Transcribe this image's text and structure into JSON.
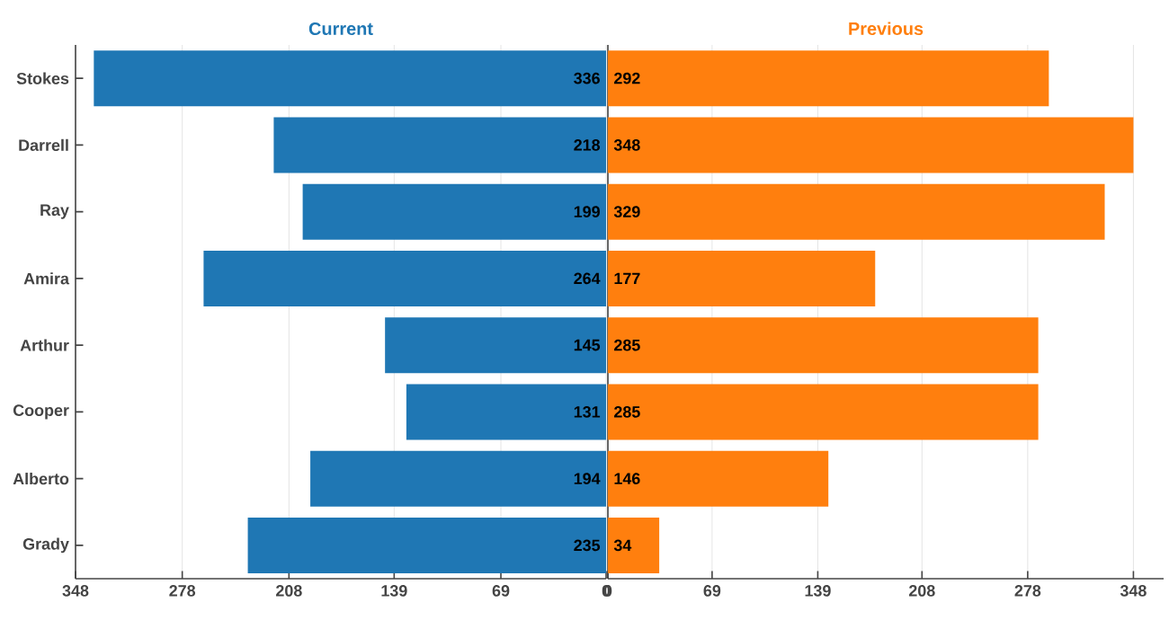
{
  "chart_data": [
    {
      "type": "bar",
      "orientation": "horizontal",
      "title": "Current",
      "categories": [
        "Stokes",
        "Darrell",
        "Ray",
        "Amira",
        "Arthur",
        "Cooper",
        "Alberto",
        "Grady"
      ],
      "values": [
        336,
        218,
        199,
        264,
        145,
        131,
        194,
        235
      ],
      "color": "#1f77b4",
      "xlim": [
        348,
        0
      ],
      "xticks": [
        348,
        278,
        208,
        139,
        69,
        0
      ],
      "grid": "x",
      "data_labels": true
    },
    {
      "type": "bar",
      "orientation": "horizontal",
      "title": "Previous",
      "values": [
        292,
        348,
        329,
        177,
        285,
        285,
        146,
        34
      ],
      "color": "#ff7f0e",
      "xlim": [
        0,
        368
      ],
      "xticks": [
        0,
        69,
        139,
        208,
        278,
        348
      ],
      "grid": "x",
      "data_labels": true,
      "tick_labels": "x"
    }
  ]
}
